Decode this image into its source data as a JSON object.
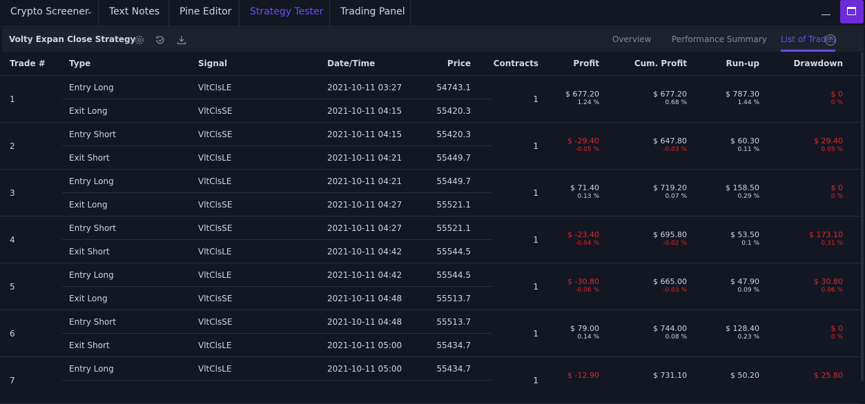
{
  "tabs": [
    {
      "label": "Crypto Screener",
      "active": false
    },
    {
      "label": "Text Notes",
      "active": false
    },
    {
      "label": "Pine Editor",
      "active": false
    },
    {
      "label": "Strategy Tester",
      "active": true
    },
    {
      "label": "Trading Panel",
      "active": false
    }
  ],
  "accent_color": "#6c4cf5",
  "negative_color": "#e0262e",
  "strategy": {
    "name": "Volty Expan Close Strategy",
    "subtabs": [
      {
        "label": "Overview",
        "active": false
      },
      {
        "label": "Performance Summary",
        "active": false
      },
      {
        "label": "List of Trades",
        "active": true
      }
    ]
  },
  "columns": {
    "trade": "Trade #",
    "type": "Type",
    "signal": "Signal",
    "datetime": "Date/Time",
    "price": "Price",
    "contracts": "Contracts",
    "profit": "Profit",
    "cum_profit": "Cum. Profit",
    "runup": "Run-up",
    "drawdown": "Drawdown"
  },
  "trades": [
    {
      "num": "1",
      "entry": {
        "type": "Entry Long",
        "signal": "VltClsLE",
        "datetime": "2021-10-11 03:27",
        "price": "54743.1"
      },
      "exit": {
        "type": "Exit Long",
        "signal": "VltClsSE",
        "datetime": "2021-10-11 04:15",
        "price": "55420.3"
      },
      "contracts": "1",
      "profit": {
        "value": "$ 677.20",
        "pct": "1.24 %",
        "negative": false
      },
      "cum_profit": {
        "value": "$ 677.20",
        "pct": "0.68 %",
        "negative": false
      },
      "runup": {
        "value": "$ 787.30",
        "pct": "1.44 %"
      },
      "drawdown": {
        "value": "$ 0",
        "pct": "0 %"
      }
    },
    {
      "num": "2",
      "entry": {
        "type": "Entry Short",
        "signal": "VltClsSE",
        "datetime": "2021-10-11 04:15",
        "price": "55420.3"
      },
      "exit": {
        "type": "Exit Short",
        "signal": "VltClsLE",
        "datetime": "2021-10-11 04:21",
        "price": "55449.7"
      },
      "contracts": "1",
      "profit": {
        "value": "$ -29.40",
        "pct": "-0.05 %",
        "negative": true
      },
      "cum_profit": {
        "value": "$ 647.80",
        "pct": "-0.03 %",
        "negative": false
      },
      "runup": {
        "value": "$ 60.30",
        "pct": "0.11 %"
      },
      "drawdown": {
        "value": "$ 29.40",
        "pct": "0.05 %"
      }
    },
    {
      "num": "3",
      "entry": {
        "type": "Entry Long",
        "signal": "VltClsLE",
        "datetime": "2021-10-11 04:21",
        "price": "55449.7"
      },
      "exit": {
        "type": "Exit Long",
        "signal": "VltClsSE",
        "datetime": "2021-10-11 04:27",
        "price": "55521.1"
      },
      "contracts": "1",
      "profit": {
        "value": "$ 71.40",
        "pct": "0.13 %",
        "negative": false
      },
      "cum_profit": {
        "value": "$ 719.20",
        "pct": "0.07 %",
        "negative": false
      },
      "runup": {
        "value": "$ 158.50",
        "pct": "0.29 %"
      },
      "drawdown": {
        "value": "$ 0",
        "pct": "0 %"
      }
    },
    {
      "num": "4",
      "entry": {
        "type": "Entry Short",
        "signal": "VltClsSE",
        "datetime": "2021-10-11 04:27",
        "price": "55521.1"
      },
      "exit": {
        "type": "Exit Short",
        "signal": "VltClsLE",
        "datetime": "2021-10-11 04:42",
        "price": "55544.5"
      },
      "contracts": "1",
      "profit": {
        "value": "$ -23.40",
        "pct": "-0.04 %",
        "negative": true
      },
      "cum_profit": {
        "value": "$ 695.80",
        "pct": "-0.02 %",
        "negative": false
      },
      "runup": {
        "value": "$ 53.50",
        "pct": "0.1 %"
      },
      "drawdown": {
        "value": "$ 173.10",
        "pct": "0.31 %"
      }
    },
    {
      "num": "5",
      "entry": {
        "type": "Entry Long",
        "signal": "VltClsLE",
        "datetime": "2021-10-11 04:42",
        "price": "55544.5"
      },
      "exit": {
        "type": "Exit Long",
        "signal": "VltClsSE",
        "datetime": "2021-10-11 04:48",
        "price": "55513.7"
      },
      "contracts": "1",
      "profit": {
        "value": "$ -30.80",
        "pct": "-0.06 %",
        "negative": true
      },
      "cum_profit": {
        "value": "$ 665.00",
        "pct": "-0.03 %",
        "negative": false
      },
      "runup": {
        "value": "$ 47.90",
        "pct": "0.09 %"
      },
      "drawdown": {
        "value": "$ 30.80",
        "pct": "0.06 %"
      }
    },
    {
      "num": "6",
      "entry": {
        "type": "Entry Short",
        "signal": "VltClsSE",
        "datetime": "2021-10-11 04:48",
        "price": "55513.7"
      },
      "exit": {
        "type": "Exit Short",
        "signal": "VltClsLE",
        "datetime": "2021-10-11 05:00",
        "price": "55434.7"
      },
      "contracts": "1",
      "profit": {
        "value": "$ 79.00",
        "pct": "0.14 %",
        "negative": false
      },
      "cum_profit": {
        "value": "$ 744.00",
        "pct": "0.08 %",
        "negative": false
      },
      "runup": {
        "value": "$ 128.40",
        "pct": "0.23 %"
      },
      "drawdown": {
        "value": "$ 0",
        "pct": "0 %"
      }
    },
    {
      "num": "7",
      "entry": {
        "type": "Entry Long",
        "signal": "VltClsLE",
        "datetime": "2021-10-11 05:00",
        "price": "55434.7"
      },
      "exit": {
        "type": "",
        "signal": "",
        "datetime": "",
        "price": ""
      },
      "contracts": "1",
      "profit": {
        "value": "$ -12.90",
        "pct": "",
        "negative": true
      },
      "cum_profit": {
        "value": "$ 731.10",
        "pct": "",
        "negative": false
      },
      "runup": {
        "value": "$ 50.20",
        "pct": ""
      },
      "drawdown": {
        "value": "$ 25.80",
        "pct": ""
      }
    }
  ]
}
